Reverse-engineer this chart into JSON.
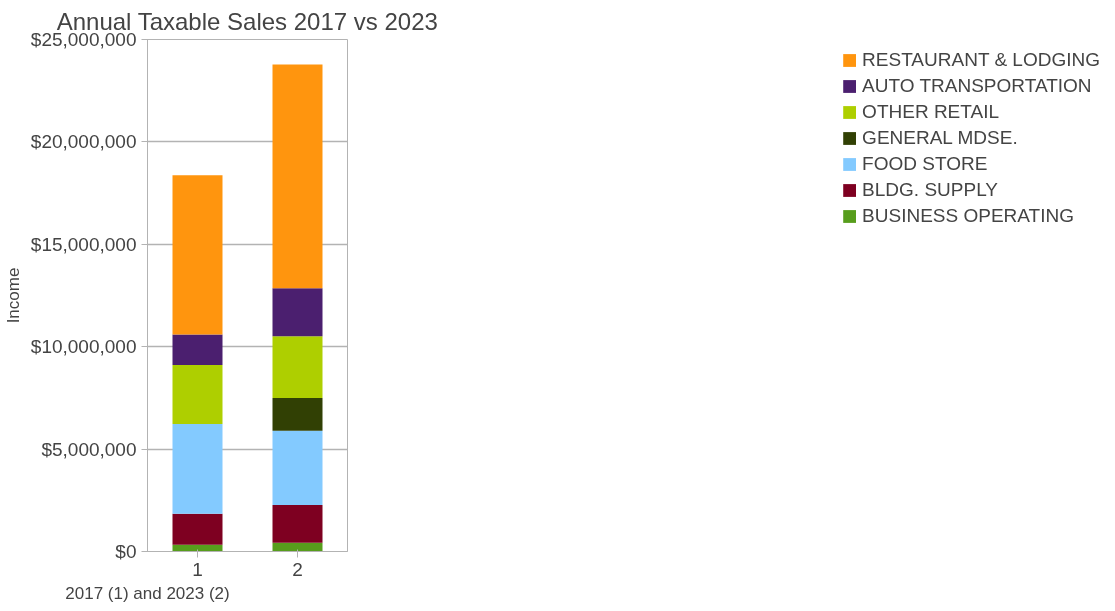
{
  "chart_data": {
    "type": "bar",
    "title": "Annual Taxable Sales 2017 vs 2023",
    "xlabel": "2017 (1) and 2023 (2)",
    "ylabel": "Income",
    "categories": [
      "1",
      "2"
    ],
    "stacked": true,
    "series": [
      {
        "name": "BUSINESS OPERATING",
        "color": "#579d1c",
        "values": [
          330000,
          430000
        ]
      },
      {
        "name": "BLDG. SUPPLY",
        "color": "#7e0021",
        "values": [
          1510000,
          1840000
        ]
      },
      {
        "name": "FOOD STORE",
        "color": "#83caff",
        "values": [
          4380000,
          3630000
        ]
      },
      {
        "name": "GENERAL MDSE.",
        "color": "#314004",
        "values": [
          0,
          1600000
        ]
      },
      {
        "name": "OTHER RETAIL",
        "color": "#aecf00",
        "values": [
          2890000,
          3010000
        ]
      },
      {
        "name": "AUTO TRANSPORTATION",
        "color": "#4b1f6f",
        "values": [
          1490000,
          2340000
        ]
      },
      {
        "name": "RESTAURANT & LODGING",
        "color": "#ff950e",
        "values": [
          7770000,
          10930000
        ]
      }
    ],
    "ylim": [
      0,
      25000000
    ],
    "yticks": [
      {
        "value": 0,
        "label": "$0"
      },
      {
        "value": 5000000,
        "label": "$5,000,000"
      },
      {
        "value": 10000000,
        "label": "$10,000,000"
      },
      {
        "value": 15000000,
        "label": "$15,000,000"
      },
      {
        "value": 20000000,
        "label": "$20,000,000"
      },
      {
        "value": 25000000,
        "label": "$25,000,000"
      }
    ],
    "grid": "y",
    "legend": "right"
  }
}
